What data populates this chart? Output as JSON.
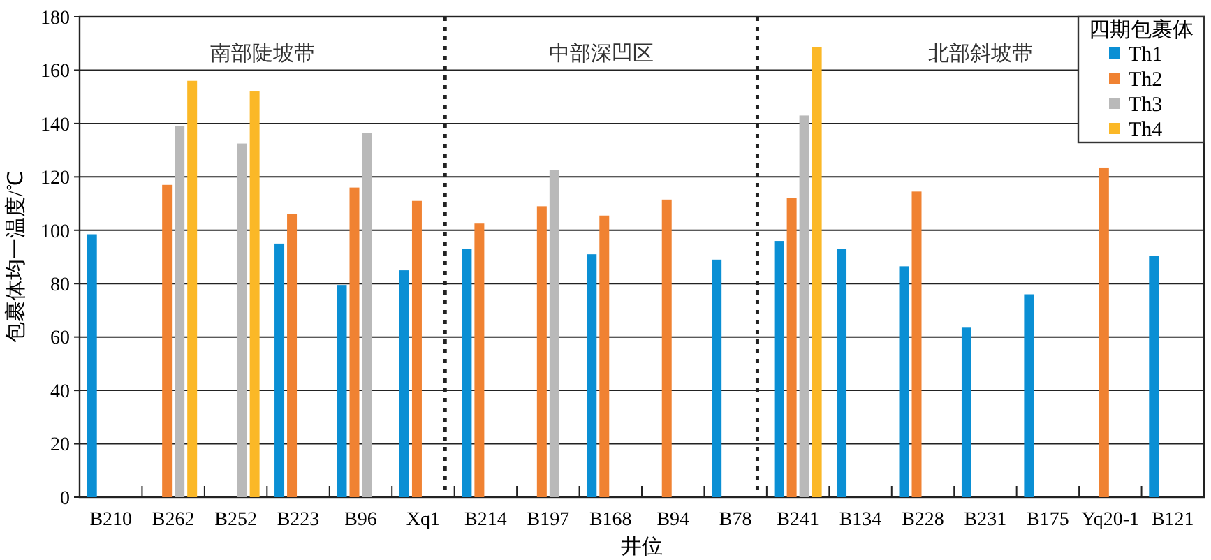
{
  "chart_data": {
    "type": "bar",
    "xlabel": "井位",
    "ylabel": "包裹体均一温度/℃",
    "legend_title": "四期包裹体",
    "legend": "top right",
    "grid": "y",
    "categories": [
      "B210",
      "B262",
      "B252",
      "B223",
      "B96",
      "Xq1",
      "B214",
      "B197",
      "B168",
      "B94",
      "B78",
      "B241",
      "B134",
      "B228",
      "B231",
      "B175",
      "Yq20-1",
      "B121"
    ],
    "series": [
      {
        "name": "Th1",
        "color": "#0a8fd4",
        "values": [
          98.5,
          null,
          null,
          95,
          79.5,
          85,
          93,
          null,
          91,
          null,
          89,
          96,
          93,
          86.5,
          63.5,
          76,
          null,
          90.5
        ]
      },
      {
        "name": "Th2",
        "color": "#f08232",
        "values": [
          null,
          117,
          null,
          106,
          116,
          111,
          102.5,
          109,
          105.5,
          111.5,
          null,
          112,
          null,
          114.5,
          null,
          null,
          123.5,
          null
        ]
      },
      {
        "name": "Th3",
        "color": "#b9b9b9",
        "values": [
          null,
          139,
          132.5,
          null,
          136.5,
          null,
          null,
          122.5,
          null,
          null,
          null,
          143,
          null,
          null,
          null,
          null,
          null,
          null
        ]
      },
      {
        "name": "Th4",
        "color": "#fbb827",
        "values": [
          null,
          156,
          152,
          null,
          null,
          null,
          null,
          null,
          null,
          null,
          null,
          168.5,
          null,
          null,
          null,
          null,
          null,
          null
        ]
      }
    ],
    "ylim": [
      0,
      180
    ],
    "yticks": [
      0,
      20,
      40,
      60,
      80,
      100,
      120,
      140,
      160,
      180
    ],
    "ref_lines": [
      {
        "axis": "x",
        "value": "Xq1",
        "line_style": "dotted",
        "color": "#222222"
      },
      {
        "axis": "x",
        "value": "B78",
        "line_style": "dotted",
        "color": "#222222"
      }
    ],
    "annotations": [
      "南部陡坡带",
      "中部深凹区",
      "北部斜坡带"
    ]
  }
}
